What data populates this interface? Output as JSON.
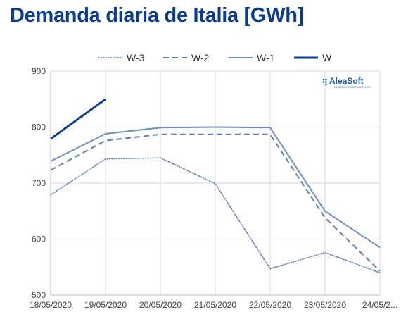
{
  "title": "Demanda diaria de Italia [GWh]",
  "logo": {
    "text": "AleaSoft",
    "subtext": "ENERGY FORECASTING"
  },
  "chart_data": {
    "type": "line",
    "title": "Demanda diaria de Italia [GWh]",
    "xlabel": "",
    "ylabel": "",
    "categories": [
      "18/05/2020",
      "19/05/2020",
      "20/05/2020",
      "21/05/2020",
      "22/05/2020",
      "23/05/2020",
      "24/05/2..."
    ],
    "ylim": [
      500,
      900
    ],
    "yticks": [
      500,
      600,
      700,
      800,
      900
    ],
    "grid": true,
    "legend_position": "top",
    "series": [
      {
        "name": "W-3",
        "style": "dotted",
        "color": "#5b7fba",
        "values": [
          679,
          743,
          745,
          699,
          547,
          576,
          540
        ]
      },
      {
        "name": "W-2",
        "style": "dashed",
        "color": "#5b7fba",
        "values": [
          723,
          776,
          787,
          787,
          787,
          638,
          543
        ]
      },
      {
        "name": "W-1",
        "style": "solid",
        "color": "#6d8fc6",
        "values": [
          739,
          788,
          799,
          800,
          799,
          650,
          585
        ]
      },
      {
        "name": "W",
        "style": "solid-bold",
        "color": "#0a3d91",
        "values": [
          779,
          850,
          null,
          null,
          null,
          null,
          null
        ]
      }
    ]
  }
}
